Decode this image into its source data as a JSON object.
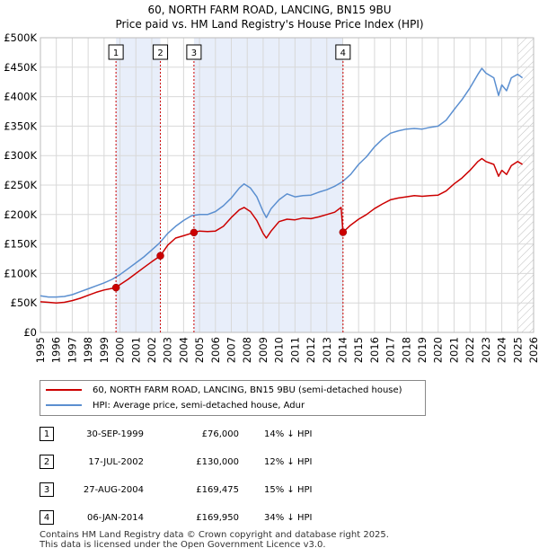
{
  "title_line1": "60, NORTH FARM ROAD, LANCING, BN15 9BU",
  "title_line2": "Price paid vs. HM Land Registry's House Price Index (HPI)",
  "chart_data": {
    "type": "line",
    "title": "60, NORTH FARM ROAD, LANCING, BN15 9BU — Price paid vs. HM Land Registry's House Price Index (HPI)",
    "xlabel": "",
    "ylabel": "",
    "xlim": [
      1995,
      2026
    ],
    "ylim": [
      0,
      500000
    ],
    "x_ticks": [
      "1995",
      "1996",
      "1997",
      "1998",
      "1999",
      "2000",
      "2001",
      "2002",
      "2003",
      "2004",
      "2005",
      "2006",
      "2007",
      "2008",
      "2009",
      "2010",
      "2011",
      "2012",
      "2013",
      "2014",
      "2015",
      "2016",
      "2017",
      "2018",
      "2019",
      "2020",
      "2021",
      "2022",
      "2023",
      "2024",
      "2025",
      "2026"
    ],
    "y_ticks": [
      {
        "value": 0,
        "label": "£0"
      },
      {
        "value": 50000,
        "label": "£50K"
      },
      {
        "value": 100000,
        "label": "£100K"
      },
      {
        "value": 150000,
        "label": "£150K"
      },
      {
        "value": 200000,
        "label": "£200K"
      },
      {
        "value": 250000,
        "label": "£250K"
      },
      {
        "value": 300000,
        "label": "£300K"
      },
      {
        "value": 350000,
        "label": "£350K"
      },
      {
        "value": 400000,
        "label": "£400K"
      },
      {
        "value": 450000,
        "label": "£450K"
      },
      {
        "value": 500000,
        "label": "£500K"
      }
    ],
    "grid": true,
    "shaded_periods": [
      [
        1999.75,
        2002.54
      ],
      [
        2004.65,
        2014.02
      ]
    ],
    "future_hatch_from": 2025.0,
    "series": [
      {
        "name": "60, NORTH FARM ROAD, LANCING, BN15 9BU (semi-detached house)",
        "color": "#cc0000",
        "points": [
          [
            1995.0,
            52000
          ],
          [
            1995.5,
            51000
          ],
          [
            1996.0,
            50000
          ],
          [
            1996.5,
            51000
          ],
          [
            1997.0,
            54000
          ],
          [
            1997.5,
            58000
          ],
          [
            1998.0,
            63000
          ],
          [
            1998.5,
            68000
          ],
          [
            1999.0,
            72000
          ],
          [
            1999.75,
            76000
          ],
          [
            2000.0,
            81000
          ],
          [
            2000.5,
            90000
          ],
          [
            2001.0,
            100000
          ],
          [
            2001.5,
            110000
          ],
          [
            2002.0,
            120000
          ],
          [
            2002.54,
            130000
          ],
          [
            2003.0,
            148000
          ],
          [
            2003.5,
            160000
          ],
          [
            2004.0,
            164000
          ],
          [
            2004.65,
            169475
          ],
          [
            2005.0,
            172000
          ],
          [
            2005.5,
            171000
          ],
          [
            2006.0,
            172000
          ],
          [
            2006.5,
            180000
          ],
          [
            2007.0,
            195000
          ],
          [
            2007.5,
            208000
          ],
          [
            2007.8,
            212000
          ],
          [
            2008.2,
            205000
          ],
          [
            2008.6,
            190000
          ],
          [
            2009.0,
            168000
          ],
          [
            2009.2,
            160000
          ],
          [
            2009.5,
            172000
          ],
          [
            2010.0,
            188000
          ],
          [
            2010.5,
            192000
          ],
          [
            2011.0,
            191000
          ],
          [
            2011.5,
            194000
          ],
          [
            2012.0,
            193000
          ],
          [
            2012.5,
            196000
          ],
          [
            2013.0,
            200000
          ],
          [
            2013.5,
            204000
          ],
          [
            2013.9,
            212000
          ],
          [
            2014.02,
            169950
          ],
          [
            2014.5,
            182000
          ],
          [
            2015.0,
            192000
          ],
          [
            2015.5,
            200000
          ],
          [
            2016.0,
            210000
          ],
          [
            2016.5,
            218000
          ],
          [
            2017.0,
            225000
          ],
          [
            2017.5,
            228000
          ],
          [
            2018.0,
            230000
          ],
          [
            2018.5,
            232000
          ],
          [
            2019.0,
            231000
          ],
          [
            2019.5,
            232000
          ],
          [
            2020.0,
            233000
          ],
          [
            2020.5,
            240000
          ],
          [
            2021.0,
            252000
          ],
          [
            2021.5,
            262000
          ],
          [
            2022.0,
            275000
          ],
          [
            2022.5,
            290000
          ],
          [
            2022.75,
            295000
          ],
          [
            2023.0,
            290000
          ],
          [
            2023.5,
            285000
          ],
          [
            2023.8,
            265000
          ],
          [
            2024.0,
            275000
          ],
          [
            2024.3,
            268000
          ],
          [
            2024.6,
            283000
          ],
          [
            2025.0,
            290000
          ],
          [
            2025.3,
            285000
          ]
        ]
      },
      {
        "name": "HPI: Average price, semi-detached house, Adur",
        "color": "#5b8fd0",
        "points": [
          [
            1995.0,
            62000
          ],
          [
            1995.5,
            60000
          ],
          [
            1996.0,
            60000
          ],
          [
            1996.5,
            61000
          ],
          [
            1997.0,
            64000
          ],
          [
            1997.5,
            69000
          ],
          [
            1998.0,
            74000
          ],
          [
            1998.5,
            79000
          ],
          [
            1999.0,
            84000
          ],
          [
            1999.5,
            90000
          ],
          [
            2000.0,
            98000
          ],
          [
            2000.5,
            108000
          ],
          [
            2001.0,
            118000
          ],
          [
            2001.5,
            128000
          ],
          [
            2002.0,
            140000
          ],
          [
            2002.5,
            152000
          ],
          [
            2003.0,
            168000
          ],
          [
            2003.5,
            180000
          ],
          [
            2004.0,
            190000
          ],
          [
            2004.5,
            198000
          ],
          [
            2005.0,
            200000
          ],
          [
            2005.5,
            200000
          ],
          [
            2006.0,
            205000
          ],
          [
            2006.5,
            215000
          ],
          [
            2007.0,
            228000
          ],
          [
            2007.5,
            245000
          ],
          [
            2007.8,
            252000
          ],
          [
            2008.2,
            245000
          ],
          [
            2008.6,
            230000
          ],
          [
            2009.0,
            205000
          ],
          [
            2009.2,
            195000
          ],
          [
            2009.5,
            210000
          ],
          [
            2010.0,
            225000
          ],
          [
            2010.5,
            235000
          ],
          [
            2011.0,
            230000
          ],
          [
            2011.5,
            232000
          ],
          [
            2012.0,
            233000
          ],
          [
            2012.5,
            238000
          ],
          [
            2013.0,
            242000
          ],
          [
            2013.5,
            248000
          ],
          [
            2014.0,
            256000
          ],
          [
            2014.5,
            268000
          ],
          [
            2015.0,
            285000
          ],
          [
            2015.5,
            298000
          ],
          [
            2016.0,
            315000
          ],
          [
            2016.5,
            328000
          ],
          [
            2017.0,
            338000
          ],
          [
            2017.5,
            342000
          ],
          [
            2018.0,
            345000
          ],
          [
            2018.5,
            346000
          ],
          [
            2019.0,
            345000
          ],
          [
            2019.5,
            348000
          ],
          [
            2020.0,
            350000
          ],
          [
            2020.5,
            360000
          ],
          [
            2021.0,
            378000
          ],
          [
            2021.5,
            395000
          ],
          [
            2022.0,
            415000
          ],
          [
            2022.5,
            438000
          ],
          [
            2022.75,
            448000
          ],
          [
            2023.0,
            440000
          ],
          [
            2023.5,
            432000
          ],
          [
            2023.8,
            402000
          ],
          [
            2024.0,
            420000
          ],
          [
            2024.3,
            410000
          ],
          [
            2024.6,
            432000
          ],
          [
            2025.0,
            438000
          ],
          [
            2025.3,
            432000
          ]
        ]
      }
    ],
    "sale_markers": [
      {
        "label": "1",
        "x": 1999.75,
        "y": 76000
      },
      {
        "label": "2",
        "x": 2002.54,
        "y": 130000
      },
      {
        "label": "3",
        "x": 2004.65,
        "y": 169475
      },
      {
        "label": "4",
        "x": 2014.02,
        "y": 169950
      }
    ]
  },
  "legend": {
    "property_label": "60, NORTH FARM ROAD, LANCING, BN15 9BU (semi-detached house)",
    "hpi_label": "HPI: Average price, semi-detached house, Adur"
  },
  "sales": [
    {
      "num": "1",
      "date": "30-SEP-1999",
      "price": "£76,000",
      "hpi": "14% ↓ HPI"
    },
    {
      "num": "2",
      "date": "17-JUL-2002",
      "price": "£130,000",
      "hpi": "12% ↓ HPI"
    },
    {
      "num": "3",
      "date": "27-AUG-2004",
      "price": "£169,475",
      "hpi": "15% ↓ HPI"
    },
    {
      "num": "4",
      "date": "06-JAN-2014",
      "price": "£169,950",
      "hpi": "34% ↓ HPI"
    }
  ],
  "footer": {
    "line1": "Contains HM Land Registry data © Crown copyright and database right 2025.",
    "line2": "This data is licensed under the Open Government Licence v3.0."
  },
  "colors": {
    "property": "#cc0000",
    "hpi": "#5b8fd0",
    "shade": "#e8eefa",
    "grid": "#d8d8d8"
  }
}
